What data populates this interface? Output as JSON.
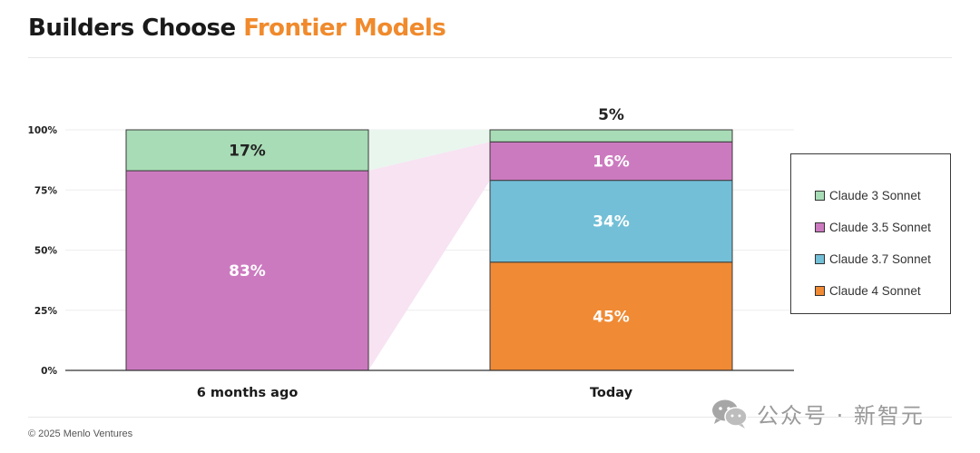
{
  "header": {
    "title_main": "Builders Choose ",
    "title_accent": "Frontier Models"
  },
  "colors": {
    "accent": "#f08a2c",
    "claude_3_sonnet": "#a8dcb6",
    "claude_3_5_sonnet": "#cc7ac0",
    "claude_3_7_sonnet": "#72bfd7",
    "claude_4_sonnet": "#f08a34"
  },
  "chart_data": {
    "type": "bar",
    "stacked": true,
    "categories": [
      "6 months ago",
      "Today"
    ],
    "y_ticks": [
      "0%",
      "25%",
      "50%",
      "75%",
      "100%"
    ],
    "ylim": [
      0,
      100
    ],
    "series": [
      {
        "name": "Claude 4 Sonnet",
        "values": [
          0,
          45
        ],
        "labels": [
          "",
          "45%"
        ],
        "color": "#f08a34",
        "label_color": "#ffffff"
      },
      {
        "name": "Claude 3.7 Sonnet",
        "values": [
          0,
          34
        ],
        "labels": [
          "",
          "34%"
        ],
        "color": "#72bfd7",
        "label_color": "#ffffff"
      },
      {
        "name": "Claude 3.5 Sonnet",
        "values": [
          83,
          16
        ],
        "labels": [
          "83%",
          "16%"
        ],
        "color": "#cc7ac0",
        "label_color": "#ffffff"
      },
      {
        "name": "Claude 3 Sonnet",
        "values": [
          17,
          5
        ],
        "labels": [
          "17%",
          "5%"
        ],
        "color": "#a8dcb6",
        "label_color": "#222222"
      }
    ],
    "legend": {
      "placement": "right",
      "entries": [
        "Claude 3 Sonnet",
        "Claude 3.5 Sonnet",
        "Claude 3.7 Sonnet",
        "Claude 4 Sonnet"
      ]
    }
  },
  "footer": {
    "copyright": "© 2025 Menlo Ventures",
    "watermark": "公众号 · 新智元"
  }
}
